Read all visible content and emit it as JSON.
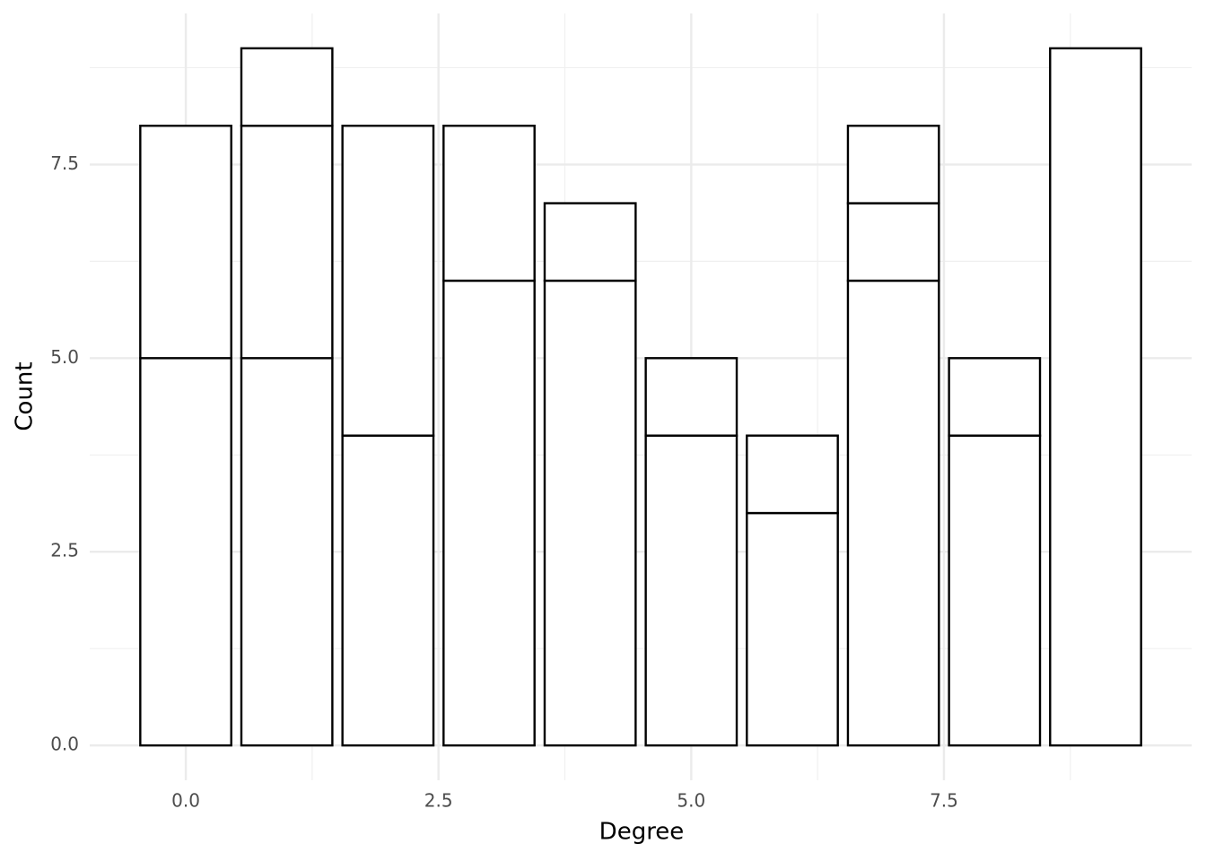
{
  "chart_data": {
    "type": "stacked_bar",
    "x_label": "Degree",
    "y_label": "Count",
    "x": [
      0,
      1,
      2,
      3,
      4,
      5,
      6,
      7,
      8,
      9
    ],
    "series": [
      {
        "color": "#ffffff",
        "values": [
          5,
          5,
          4,
          6,
          6,
          4,
          3,
          6,
          4,
          9
        ]
      },
      {
        "color": "#ffffff",
        "values": [
          3,
          3,
          4,
          2,
          1,
          1,
          1,
          1,
          1,
          null
        ]
      },
      {
        "color": "#ffffff",
        "values": [
          null,
          1,
          null,
          null,
          null,
          null,
          null,
          1,
          null,
          null
        ]
      }
    ],
    "outline_color": "#000000",
    "xlim": [
      -0.95,
      9.95
    ],
    "xticks": [
      {
        "value": 0,
        "label": "0.0"
      },
      {
        "value": 2.5,
        "label": "2.5"
      },
      {
        "value": 5,
        "label": "5.0"
      },
      {
        "value": 7.5,
        "label": "7.5"
      }
    ],
    "minor_xticks": [
      1.25,
      3.75,
      6.25,
      8.75
    ],
    "ylim": [
      -0.45,
      9.45
    ],
    "yticks": [
      {
        "value": 0,
        "label": "0.0"
      },
      {
        "value": 2.5,
        "label": "2.5"
      },
      {
        "value": 5,
        "label": "5.0"
      },
      {
        "value": 7.5,
        "label": "7.5"
      }
    ],
    "minor_yticks": [
      1.25,
      3.75,
      6.25,
      8.75
    ],
    "grid": true
  }
}
